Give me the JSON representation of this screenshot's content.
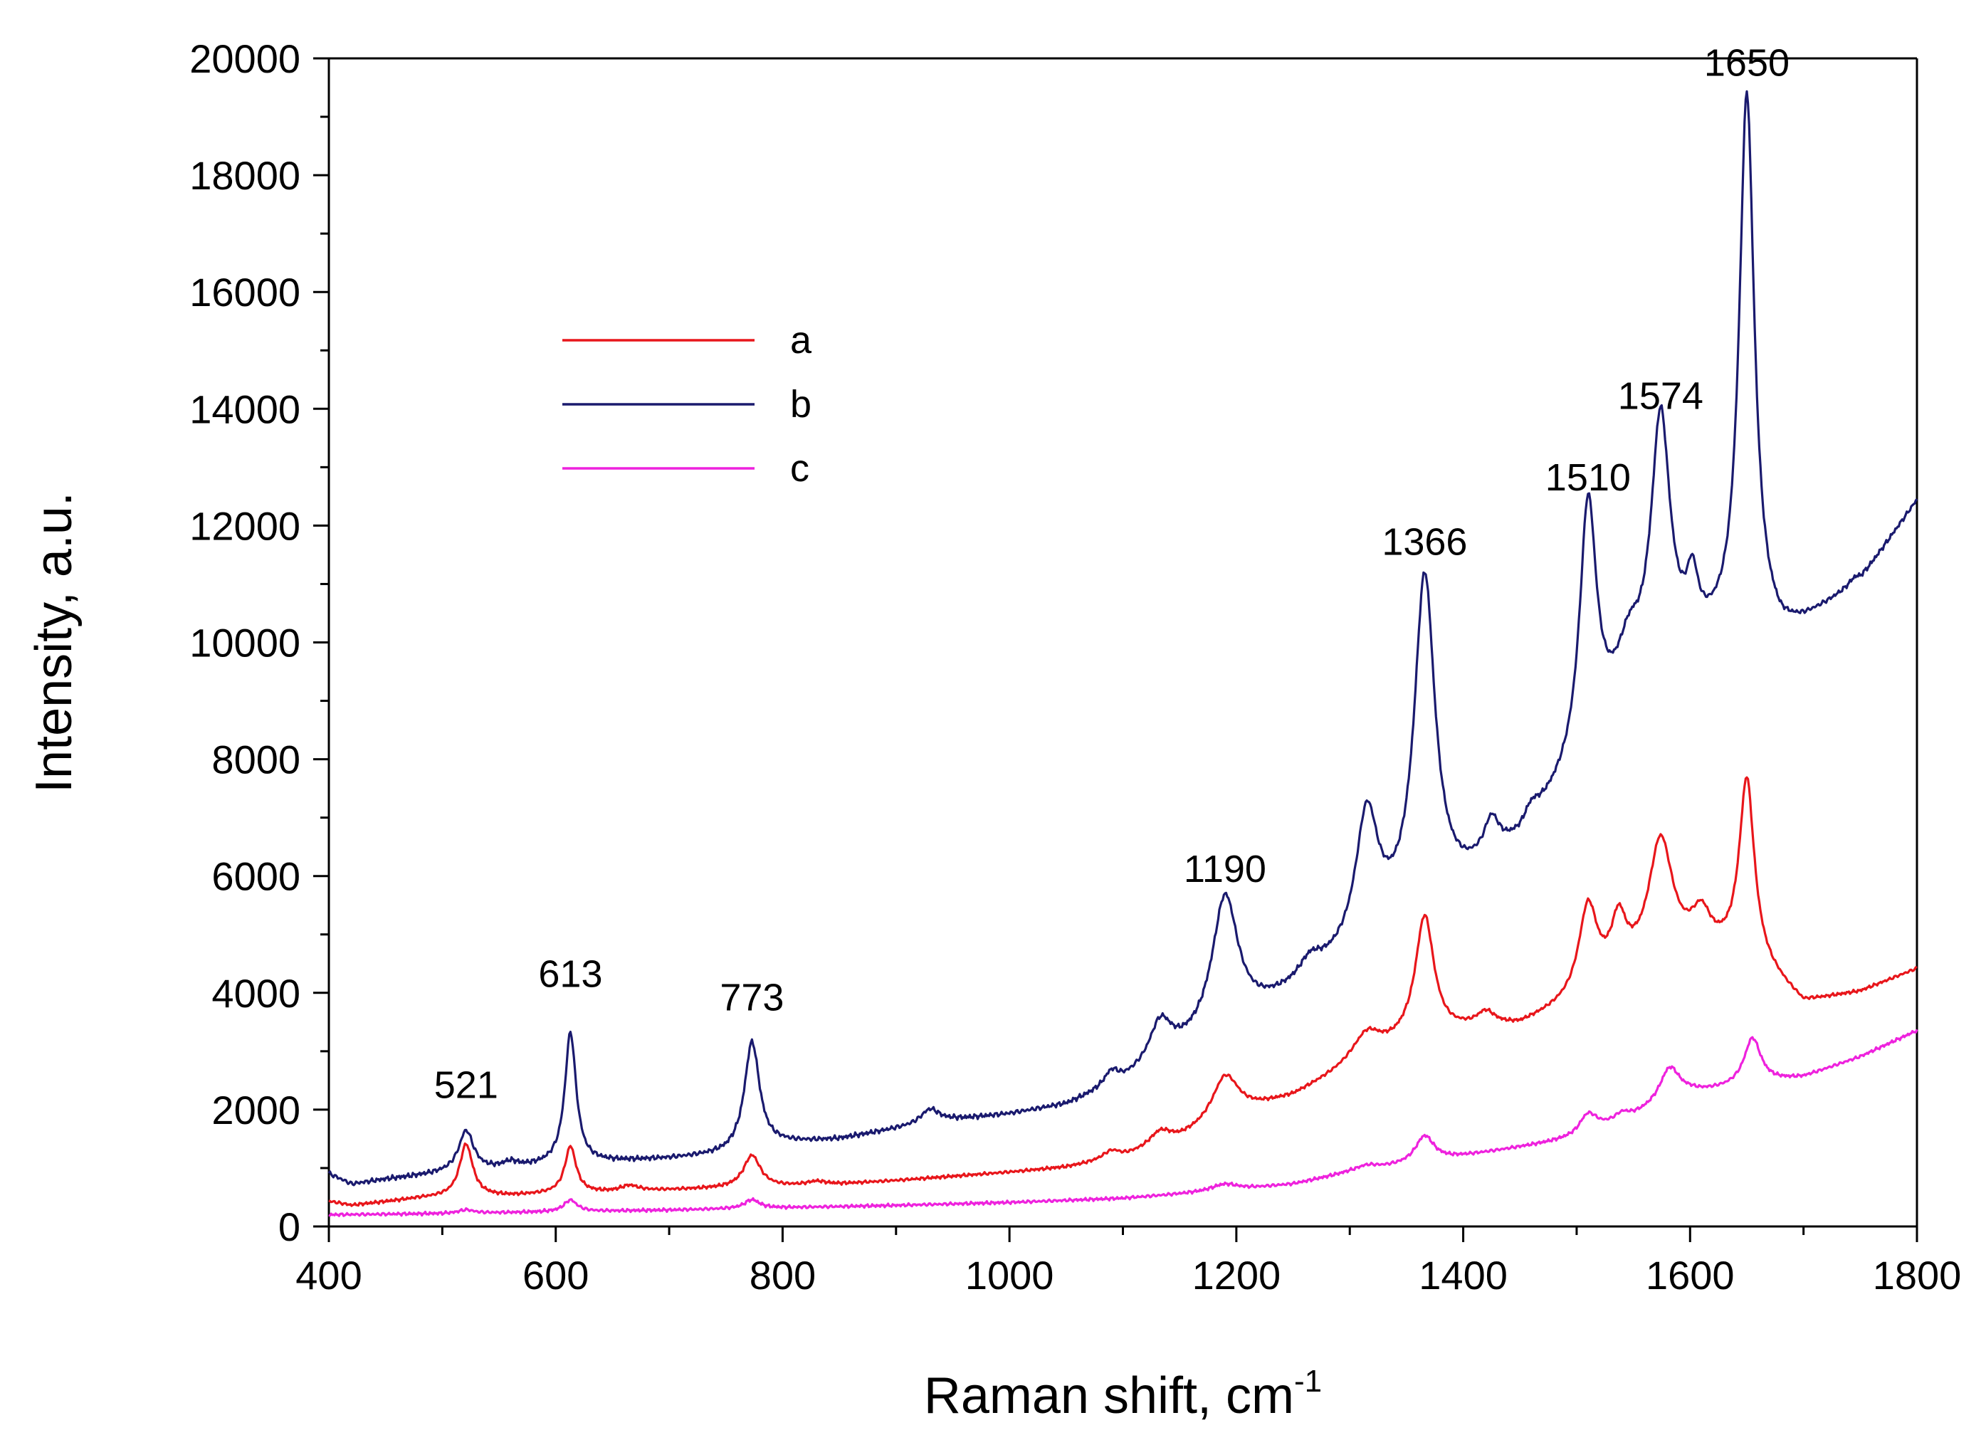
{
  "chart_data": {
    "type": "line",
    "title": "",
    "xlabel": "Raman shift, cm",
    "xlabel_superscript": "-1",
    "ylabel": "Intensity, a.u.",
    "xlim": [
      400,
      1800
    ],
    "ylim": [
      0,
      20000
    ],
    "x_ticks": [
      "400",
      "600",
      "800",
      "1000",
      "1200",
      "1400",
      "1600",
      "1800"
    ],
    "y_ticks": [
      "0",
      "2000",
      "4000",
      "6000",
      "8000",
      "10000",
      "12000",
      "14000",
      "16000",
      "18000",
      "20000"
    ],
    "legend_position": "upper-left",
    "series": [
      {
        "name": "a",
        "color": "#e8161b",
        "baseline": [
          [
            400,
            430
          ],
          [
            420,
            360
          ],
          [
            450,
            420
          ],
          [
            480,
            480
          ],
          [
            500,
            500
          ],
          [
            560,
            520
          ],
          [
            600,
            560
          ],
          [
            650,
            580
          ],
          [
            700,
            620
          ],
          [
            750,
            650
          ],
          [
            800,
            680
          ],
          [
            850,
            720
          ],
          [
            900,
            780
          ],
          [
            950,
            850
          ],
          [
            1000,
            920
          ],
          [
            1050,
            1000
          ],
          [
            1100,
            1150
          ],
          [
            1150,
            1450
          ],
          [
            1200,
            1900
          ],
          [
            1250,
            2200
          ],
          [
            1300,
            2700
          ],
          [
            1350,
            3100
          ],
          [
            1400,
            3300
          ],
          [
            1450,
            3400
          ],
          [
            1500,
            3800
          ],
          [
            1550,
            4300
          ],
          [
            1600,
            4600
          ],
          [
            1650,
            4600
          ],
          [
            1700,
            3800
          ],
          [
            1750,
            4000
          ],
          [
            1800,
            4400
          ]
        ],
        "peaks": [
          [
            521,
            900,
            7
          ],
          [
            613,
            800,
            6
          ],
          [
            665,
            100,
            10
          ],
          [
            773,
            550,
            9
          ],
          [
            830,
            60,
            10
          ],
          [
            1090,
            150,
            10
          ],
          [
            1133,
            250,
            12
          ],
          [
            1190,
            750,
            14
          ],
          [
            1315,
            450,
            15
          ],
          [
            1366,
            2100,
            10
          ],
          [
            1420,
            250,
            10
          ],
          [
            1510,
            1500,
            10
          ],
          [
            1537,
            900,
            8
          ],
          [
            1574,
            2100,
            13
          ],
          [
            1610,
            600,
            10
          ],
          [
            1650,
            3000,
            8
          ]
        ]
      },
      {
        "name": "b",
        "color": "#1a1a6e",
        "baseline": [
          [
            400,
            900
          ],
          [
            420,
            720
          ],
          [
            450,
            800
          ],
          [
            480,
            860
          ],
          [
            500,
            900
          ],
          [
            560,
            980
          ],
          [
            600,
            1050
          ],
          [
            650,
            1100
          ],
          [
            700,
            1150
          ],
          [
            750,
            1220
          ],
          [
            800,
            1400
          ],
          [
            850,
            1480
          ],
          [
            900,
            1650
          ],
          [
            950,
            1800
          ],
          [
            1000,
            1900
          ],
          [
            1050,
            2050
          ],
          [
            1100,
            2400
          ],
          [
            1150,
            2900
          ],
          [
            1200,
            3400
          ],
          [
            1250,
            3950
          ],
          [
            1300,
            4550
          ],
          [
            1350,
            5250
          ],
          [
            1400,
            5800
          ],
          [
            1450,
            6500
          ],
          [
            1500,
            7700
          ],
          [
            1550,
            9300
          ],
          [
            1600,
            9800
          ],
          [
            1650,
            10100
          ],
          [
            1680,
            10000
          ],
          [
            1700,
            10250
          ],
          [
            1750,
            11000
          ],
          [
            1800,
            12400
          ]
        ],
        "peaks": [
          [
            521,
            700,
            8
          ],
          [
            560,
            100,
            8
          ],
          [
            613,
            2250,
            6
          ],
          [
            773,
            1850,
            8
          ],
          [
            930,
            250,
            10
          ],
          [
            1090,
            250,
            8
          ],
          [
            1133,
            700,
            12
          ],
          [
            1190,
            2300,
            14
          ],
          [
            1265,
            300,
            12
          ],
          [
            1315,
            2200,
            12
          ],
          [
            1366,
            5600,
            11
          ],
          [
            1425,
            600,
            8
          ],
          [
            1460,
            250,
            8
          ],
          [
            1510,
            4300,
            9
          ],
          [
            1545,
            500,
            10
          ],
          [
            1574,
            4200,
            10
          ],
          [
            1602,
            900,
            6
          ],
          [
            1650,
            9200,
            8
          ],
          [
            1745,
            100,
            6
          ]
        ]
      },
      {
        "name": "c",
        "color": "#ee22dd",
        "baseline": [
          [
            400,
            200
          ],
          [
            500,
            220
          ],
          [
            600,
            250
          ],
          [
            700,
            280
          ],
          [
            800,
            320
          ],
          [
            900,
            360
          ],
          [
            1000,
            410
          ],
          [
            1100,
            480
          ],
          [
            1200,
            620
          ],
          [
            1250,
            720
          ],
          [
            1300,
            920
          ],
          [
            1350,
            1050
          ],
          [
            1400,
            1200
          ],
          [
            1450,
            1350
          ],
          [
            1500,
            1500
          ],
          [
            1550,
            1850
          ],
          [
            1600,
            2250
          ],
          [
            1650,
            2400
          ],
          [
            1700,
            2550
          ],
          [
            1750,
            2900
          ],
          [
            1800,
            3350
          ]
        ],
        "peaks": [
          [
            521,
            60,
            8
          ],
          [
            613,
            200,
            7
          ],
          [
            773,
            150,
            8
          ],
          [
            1190,
            120,
            15
          ],
          [
            1315,
            80,
            12
          ],
          [
            1366,
            450,
            10
          ],
          [
            1510,
            350,
            10
          ],
          [
            1540,
            120,
            8
          ],
          [
            1582,
            600,
            11
          ],
          [
            1655,
            800,
            9
          ]
        ]
      }
    ],
    "annotations": [
      {
        "text": "521",
        "x": 521,
        "y": 2200
      },
      {
        "text": "613",
        "x": 613,
        "y": 4100
      },
      {
        "text": "773",
        "x": 773,
        "y": 3700
      },
      {
        "text": "1190",
        "x": 1190,
        "y": 5900
      },
      {
        "text": "1366",
        "x": 1366,
        "y": 11500
      },
      {
        "text": "1510",
        "x": 1510,
        "y": 12600
      },
      {
        "text": "1574",
        "x": 1574,
        "y": 14000
      },
      {
        "text": "1650",
        "x": 1650,
        "y": 19700
      }
    ]
  }
}
